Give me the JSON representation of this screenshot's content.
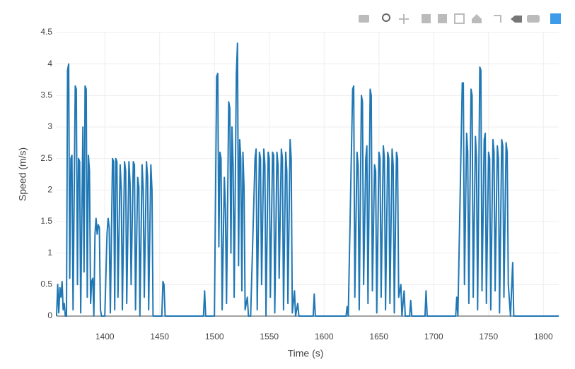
{
  "chart_data": {
    "type": "line",
    "xlabel": "Time (s)",
    "ylabel": "Speed (m/s)",
    "color": "#1f77b4",
    "grid": true,
    "xlim": [
      1356,
      1814
    ],
    "ylim": [
      0,
      4.5
    ],
    "xticks": [
      1400,
      1450,
      1500,
      1550,
      1600,
      1650,
      1700,
      1750,
      1800
    ],
    "yticks": [
      0,
      0.5,
      1,
      1.5,
      2,
      2.5,
      3,
      3.5,
      4,
      4.5
    ],
    "x": [
      1356,
      1357,
      1358,
      1359,
      1360,
      1361,
      1362,
      1363,
      1364,
      1365,
      1366,
      1367,
      1368,
      1369,
      1370,
      1371,
      1373,
      1374,
      1375,
      1376,
      1377,
      1378,
      1380,
      1381,
      1382,
      1383,
      1384,
      1385,
      1386,
      1387,
      1388,
      1389,
      1390,
      1391,
      1392,
      1393,
      1394,
      1395,
      1396,
      1397,
      1400,
      1402,
      1403,
      1404,
      1405,
      1407,
      1408,
      1409,
      1410,
      1411,
      1412,
      1414,
      1415,
      1416,
      1418,
      1419,
      1420,
      1422,
      1423,
      1424,
      1426,
      1427,
      1428,
      1430,
      1431,
      1432,
      1434,
      1435,
      1436,
      1438,
      1439,
      1440,
      1442,
      1443,
      1444,
      1452,
      1453,
      1454,
      1455,
      1490,
      1491,
      1492,
      1500,
      1502,
      1503,
      1504,
      1505,
      1506,
      1507,
      1509,
      1510,
      1511,
      1513,
      1514,
      1515,
      1516,
      1517,
      1518,
      1520,
      1521,
      1522,
      1523,
      1524,
      1525,
      1526,
      1527,
      1528,
      1530,
      1531,
      1533,
      1537,
      1538,
      1539,
      1541,
      1542,
      1543,
      1545,
      1546,
      1547,
      1549,
      1550,
      1551,
      1553,
      1554,
      1555,
      1557,
      1558,
      1559,
      1561,
      1562,
      1563,
      1565,
      1566,
      1567,
      1569,
      1570,
      1571,
      1573,
      1574,
      1576,
      1577,
      1590,
      1591,
      1592,
      1620,
      1621,
      1622,
      1626,
      1627,
      1628,
      1630,
      1631,
      1632,
      1634,
      1635,
      1636,
      1638,
      1639,
      1640,
      1642,
      1643,
      1644,
      1646,
      1647,
      1648,
      1650,
      1651,
      1652,
      1654,
      1655,
      1656,
      1658,
      1659,
      1660,
      1662,
      1663,
      1664,
      1666,
      1667,
      1668,
      1670,
      1671,
      1673,
      1674,
      1678,
      1679,
      1680,
      1692,
      1693,
      1694,
      1720,
      1721,
      1722,
      1726,
      1727,
      1728,
      1730,
      1731,
      1732,
      1734,
      1735,
      1736,
      1738,
      1739,
      1740,
      1742,
      1743,
      1744,
      1746,
      1747,
      1748,
      1750,
      1751,
      1752,
      1754,
      1755,
      1756,
      1758,
      1759,
      1760,
      1762,
      1763,
      1764,
      1766,
      1767,
      1768,
      1770,
      1772,
      1773,
      1776,
      1814
    ],
    "values": [
      0,
      0.5,
      0.05,
      0.45,
      0.3,
      0.55,
      0.1,
      0.2,
      0,
      0,
      3.9,
      4.0,
      0.6,
      2.5,
      2.55,
      0.1,
      3.65,
      3.6,
      0.5,
      2.5,
      2.45,
      0.05,
      3.0,
      0.7,
      3.65,
      3.6,
      0.3,
      2.55,
      2.3,
      0.2,
      0.55,
      0.6,
      0,
      1.3,
      1.55,
      1.3,
      1.45,
      1.4,
      0.1,
      0,
      0,
      1.3,
      1.55,
      1.4,
      0.05,
      2.5,
      2.45,
      0.1,
      2.5,
      2.45,
      0.3,
      2.4,
      2.0,
      0.1,
      2.45,
      2.3,
      0.2,
      2.45,
      2.1,
      0.5,
      2.45,
      2.4,
      0.1,
      2.2,
      2.05,
      0,
      2.4,
      2.0,
      0.3,
      2.45,
      2.2,
      0.1,
      2.4,
      2.0,
      0,
      0,
      0.55,
      0.5,
      0,
      0,
      0.4,
      0,
      0,
      3.8,
      3.85,
      1.1,
      2.6,
      2.5,
      0.1,
      2.2,
      1.7,
      0.2,
      3.4,
      3.3,
      1.0,
      3.0,
      2.4,
      0.3,
      3.85,
      4.33,
      0.8,
      2.8,
      2.5,
      0.4,
      2.6,
      2.0,
      0.1,
      0.3,
      0,
      0,
      2.5,
      2.65,
      0.1,
      2.6,
      2.5,
      0.5,
      2.65,
      2.4,
      0,
      2.6,
      2.5,
      0.3,
      2.6,
      2.55,
      0.05,
      2.6,
      2.4,
      0.6,
      2.65,
      2.5,
      0.1,
      2.6,
      2.3,
      0.2,
      2.8,
      2.5,
      0.05,
      0.4,
      0,
      0.2,
      0,
      0,
      0.35,
      0,
      0,
      0.15,
      0,
      3.6,
      3.65,
      0.3,
      2.6,
      2.4,
      0.1,
      3.5,
      3.4,
      0.5,
      2.5,
      2.7,
      0.2,
      3.6,
      3.5,
      0.4,
      2.4,
      2.3,
      0.05,
      2.6,
      2.5,
      0.3,
      2.7,
      2.5,
      0.1,
      2.6,
      2.5,
      0.2,
      2.65,
      2.4,
      0.05,
      2.6,
      2.5,
      0.3,
      0.5,
      0,
      0.4,
      0,
      0,
      0.25,
      0,
      0,
      0.4,
      0,
      0,
      0.3,
      0,
      3.7,
      3.7,
      0.5,
      2.9,
      2.6,
      0.2,
      3.6,
      3.5,
      0.3,
      2.85,
      2.5,
      0.1,
      3.95,
      3.9,
      0.4,
      2.8,
      2.9,
      0.2,
      2.6,
      2.5,
      0.1,
      2.8,
      2.6,
      0.4,
      2.7,
      2.5,
      0.05,
      2.8,
      2.7,
      0.3,
      2.75,
      2.6,
      0.5,
      0,
      0.85,
      0,
      0,
      0
    ]
  }
}
